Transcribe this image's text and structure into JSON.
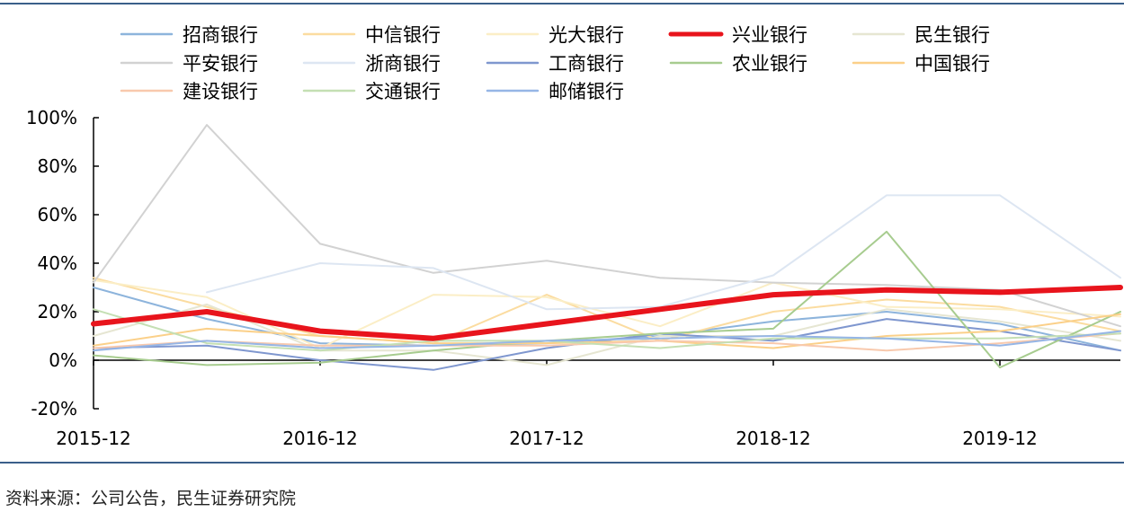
{
  "chart_data": {
    "type": "line",
    "categories": [
      "2015-12",
      "2016-06",
      "2016-12",
      "2017-06",
      "2017-12",
      "2018-06",
      "2018-12",
      "2019-06",
      "2019-12",
      "2020-06"
    ],
    "x_tick_labels": [
      "2015-12",
      "2016-12",
      "2017-12",
      "2018-12",
      "2019-12"
    ],
    "y_ticks": [
      "-20%",
      "0%",
      "20%",
      "40%",
      "60%",
      "80%",
      "100%"
    ],
    "ylim": [
      -20,
      100
    ],
    "y_unit": "%",
    "grid": false,
    "legend_position": "top",
    "series": [
      {
        "name": "招商银行",
        "color": "#8db4dc",
        "width": 2,
        "values": [
          30,
          17,
          7,
          6,
          7,
          10,
          16,
          20,
          15,
          4
        ]
      },
      {
        "name": "中信银行",
        "color": "#fbdca0",
        "width": 2,
        "values": [
          34,
          22,
          10,
          7,
          27,
          8,
          20,
          25,
          22,
          12
        ]
      },
      {
        "name": "光大银行",
        "color": "#fbeec6",
        "width": 2,
        "values": [
          33,
          26,
          5,
          27,
          26,
          14,
          32,
          22,
          21,
          18
        ]
      },
      {
        "name": "兴业银行",
        "color": "#e8141c",
        "width": 6,
        "values": [
          15,
          20,
          12,
          9,
          15,
          21,
          27,
          29,
          28,
          30
        ]
      },
      {
        "name": "民生银行",
        "color": "#e6e6d2",
        "width": 2,
        "values": [
          10,
          23,
          4,
          4,
          -2,
          10,
          10,
          21,
          16,
          8
        ]
      },
      {
        "name": "平安银行",
        "color": "#d2d2d2",
        "width": 2,
        "values": [
          32,
          97,
          48,
          36,
          41,
          34,
          32,
          31,
          29,
          14
        ]
      },
      {
        "name": "浙商银行",
        "color": "#dde6f2",
        "width": 2,
        "values": [
          null,
          28,
          40,
          38,
          21,
          22,
          35,
          68,
          68,
          34
        ]
      },
      {
        "name": "工商银行",
        "color": "#7f97cf",
        "width": 2,
        "values": [
          5,
          6,
          0,
          -4,
          5,
          11,
          8,
          17,
          12,
          4
        ]
      },
      {
        "name": "农业银行",
        "color": "#a7cc8f",
        "width": 2,
        "values": [
          2,
          -2,
          -1,
          4,
          8,
          11,
          13,
          53,
          -3,
          20
        ]
      },
      {
        "name": "中国银行",
        "color": "#fbd089",
        "width": 2,
        "values": [
          6,
          13,
          10,
          7,
          7,
          8,
          5,
          10,
          12,
          19
        ]
      },
      {
        "name": "建设银行",
        "color": "#f8c9ad",
        "width": 2,
        "values": [
          5,
          8,
          6,
          6,
          6,
          8,
          7,
          4,
          7,
          11
        ]
      },
      {
        "name": "交通银行",
        "color": "#c4dfb3",
        "width": 2,
        "values": [
          21,
          7,
          4,
          8,
          8,
          5,
          9,
          9,
          9,
          11
        ]
      },
      {
        "name": "邮储银行",
        "color": "#96b6e6",
        "width": 2,
        "values": [
          4,
          8,
          5,
          6,
          8,
          9,
          10,
          9,
          6,
          12
        ]
      }
    ]
  },
  "source_note": "资料来源：公司公告，民生证券研究院"
}
